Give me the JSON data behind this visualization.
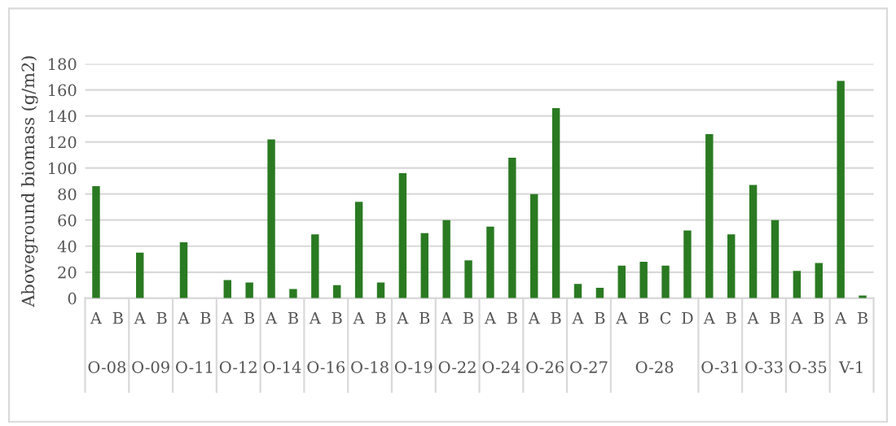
{
  "chart_data": {
    "type": "bar",
    "ylabel": "Aboveground biomass (g/m2)",
    "categories": [
      "A",
      "B",
      "A",
      "B",
      "A",
      "B",
      "A",
      "B",
      "A",
      "B",
      "A",
      "B",
      "A",
      "B",
      "A",
      "B",
      "A",
      "B",
      "A",
      "B",
      "A",
      "B",
      "A",
      "B",
      "A",
      "B",
      "C",
      "D",
      "A",
      "B",
      "A",
      "B",
      "A",
      "B",
      "A",
      "B"
    ],
    "values": [
      86,
      0,
      35,
      0,
      43,
      0,
      14,
      12,
      122,
      7,
      49,
      10,
      74,
      12,
      96,
      50,
      60,
      29,
      55,
      108,
      80,
      146,
      11,
      8,
      25,
      28,
      25,
      52,
      126,
      49,
      87,
      60,
      21,
      27,
      167,
      2
    ],
    "color": "#2a7a22",
    "annotations": [
      "O-08",
      "O-09",
      "O-11",
      "O-12",
      "O-14",
      "O-16",
      "O-18",
      "O-19",
      "O-22",
      "O-24",
      "O-26",
      "O-27",
      "O-28",
      "O-31",
      "O-33",
      "O-35",
      "V-1"
    ],
    "ylim": [
      0,
      180
    ],
    "yticks": [
      0,
      20,
      40,
      60,
      80,
      100,
      120,
      140,
      160,
      180
    ],
    "grid": "y"
  }
}
